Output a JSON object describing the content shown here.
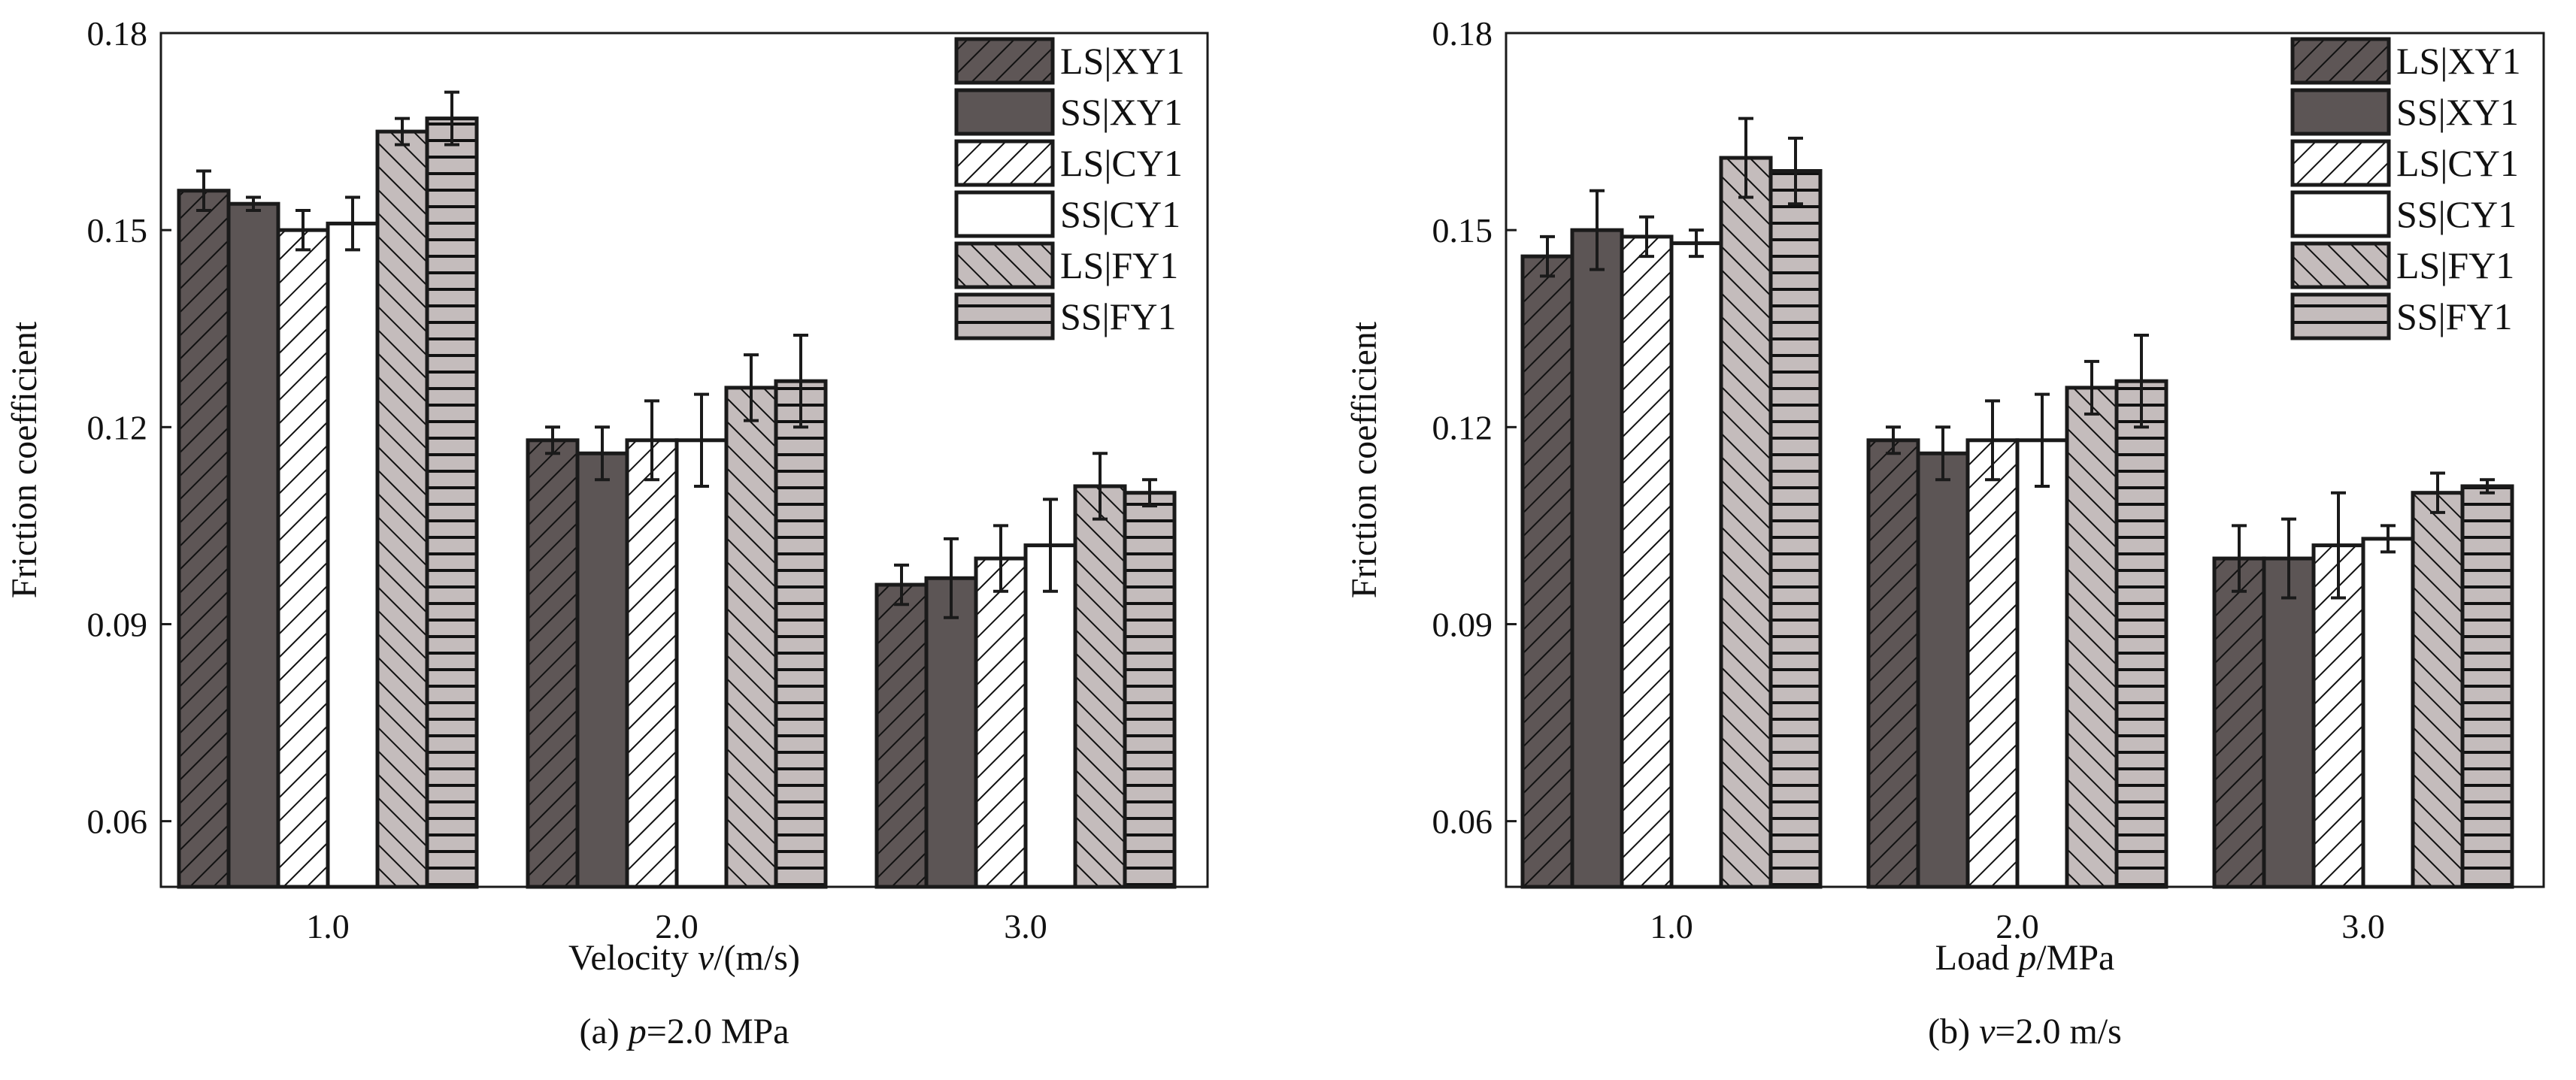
{
  "chart_data": [
    {
      "type": "bar",
      "ylabel": "Friction coefficient",
      "xlabel": {
        "pre": "Velocity ",
        "var": "v",
        "post": "/(m/s)"
      },
      "caption": {
        "pre": "(a) ",
        "var": "p",
        "post": "=2.0 MPa"
      },
      "categories": [
        "1.0",
        "2.0",
        "3.0"
      ],
      "ylim": [
        0.05,
        0.18
      ],
      "yticks": [
        "0.06",
        "0.09",
        "0.12",
        "0.15",
        "0.18"
      ],
      "legend_position": "top-right",
      "series": [
        {
          "name": "LS|XY1",
          "values": [
            0.156,
            0.118,
            0.096
          ],
          "errors": [
            0.003,
            0.002,
            0.003
          ]
        },
        {
          "name": "SS|XY1",
          "values": [
            0.154,
            0.116,
            0.097
          ],
          "errors": [
            0.001,
            0.004,
            0.006
          ]
        },
        {
          "name": "LS|CY1",
          "values": [
            0.15,
            0.118,
            0.1
          ],
          "errors": [
            0.003,
            0.006,
            0.005
          ]
        },
        {
          "name": "SS|CY1",
          "values": [
            0.151,
            0.118,
            0.102
          ],
          "errors": [
            0.004,
            0.007,
            0.007
          ]
        },
        {
          "name": "LS|FY1",
          "values": [
            0.165,
            0.126,
            0.111
          ],
          "errors": [
            0.002,
            0.005,
            0.005
          ]
        },
        {
          "name": "SS|FY1",
          "values": [
            0.167,
            0.127,
            0.11
          ],
          "errors": [
            0.004,
            0.007,
            0.002
          ]
        }
      ]
    },
    {
      "type": "bar",
      "ylabel": "Friction coefficient",
      "xlabel": {
        "pre": "Load ",
        "var": "p",
        "post": "/MPa"
      },
      "caption": {
        "pre": "(b) ",
        "var": "v",
        "post": "=2.0 m/s"
      },
      "categories": [
        "1.0",
        "2.0",
        "3.0"
      ],
      "ylim": [
        0.05,
        0.18
      ],
      "yticks": [
        "0.06",
        "0.09",
        "0.12",
        "0.15",
        "0.18"
      ],
      "legend_position": "top-right",
      "series": [
        {
          "name": "LS|XY1",
          "values": [
            0.146,
            0.118,
            0.1
          ],
          "errors": [
            0.003,
            0.002,
            0.005
          ]
        },
        {
          "name": "SS|XY1",
          "values": [
            0.15,
            0.116,
            0.1
          ],
          "errors": [
            0.006,
            0.004,
            0.006
          ]
        },
        {
          "name": "LS|CY1",
          "values": [
            0.149,
            0.118,
            0.102
          ],
          "errors": [
            0.003,
            0.006,
            0.008
          ]
        },
        {
          "name": "SS|CY1",
          "values": [
            0.148,
            0.118,
            0.103
          ],
          "errors": [
            0.002,
            0.007,
            0.002
          ]
        },
        {
          "name": "LS|FY1",
          "values": [
            0.161,
            0.126,
            0.11
          ],
          "errors": [
            0.006,
            0.004,
            0.003
          ]
        },
        {
          "name": "SS|FY1",
          "values": [
            0.159,
            0.127,
            0.111
          ],
          "errors": [
            0.005,
            0.007,
            0.001
          ]
        }
      ]
    }
  ],
  "styles": {
    "fills": [
      "#5e5656",
      "#5c5555",
      "#ffffff",
      "#ffffff",
      "#c4bcbc",
      "#c4bcbc"
    ],
    "hatches": [
      "fwd",
      "none",
      "fwd",
      "none",
      "back",
      "horiz"
    ]
  }
}
